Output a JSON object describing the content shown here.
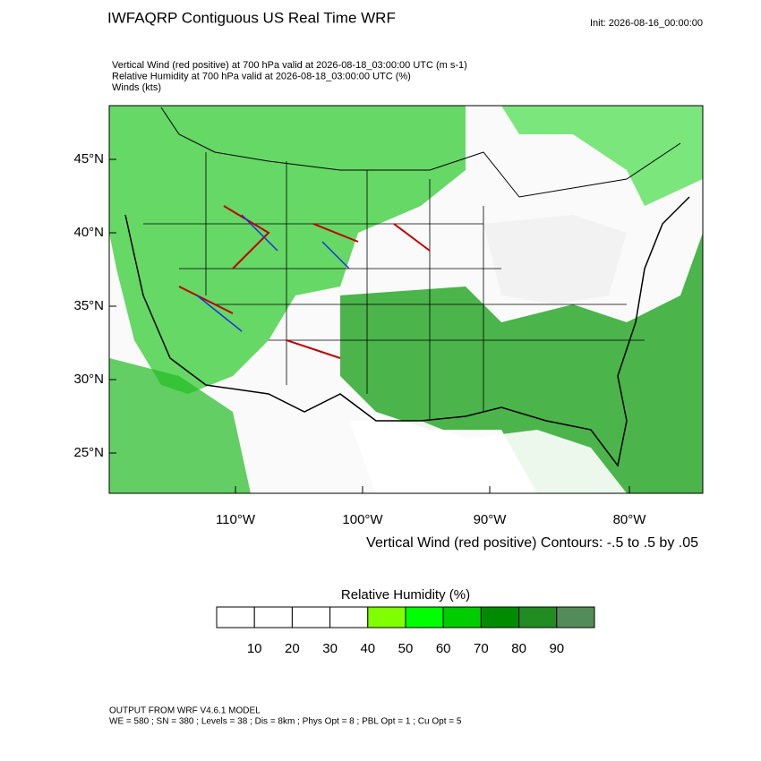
{
  "header": {
    "title": "IWFAQRP Contiguous US Real Time WRF",
    "init": "Init: 2026-08-16_00:00:00",
    "lines": [
      "Vertical Wind (red positive) at 700 hPa valid at 2026-08-18_03:00:00 UTC   (m s-1)",
      "Relative Humidity at 700 hPa valid at 2026-08-18_03:00:00 UTC   (%)",
      "Winds   (kts)"
    ]
  },
  "map": {
    "lat_labels": [
      "45°N",
      "40°N",
      "35°N",
      "30°N",
      "25°N"
    ],
    "lon_labels": [
      "110°W",
      "100°W",
      "90°W",
      "80°W"
    ],
    "contour_note": "Vertical Wind (red positive) Contours: -.5 to .5 by .05"
  },
  "colorbar": {
    "title": "Relative Humidity  (%)",
    "colors": [
      "#ffffff",
      "#ffffff",
      "#ffffff",
      "#ffffff",
      "#80ff00",
      "#00ff00",
      "#00cd00",
      "#008b00",
      "#228b22",
      "#548b5a"
    ],
    "lim": [
      0,
      100
    ],
    "ticks": [
      10,
      20,
      30,
      40,
      50,
      60,
      70,
      80,
      90
    ]
  },
  "footer": {
    "lines": [
      "OUTPUT FROM WRF V4.6.1 MODEL",
      "WE = 580 ; SN = 380 ; Levels = 38 ; Dis = 8km ; Phys Opt = 8 ; PBL Opt = 1 ; Cu Opt = 5"
    ]
  }
}
